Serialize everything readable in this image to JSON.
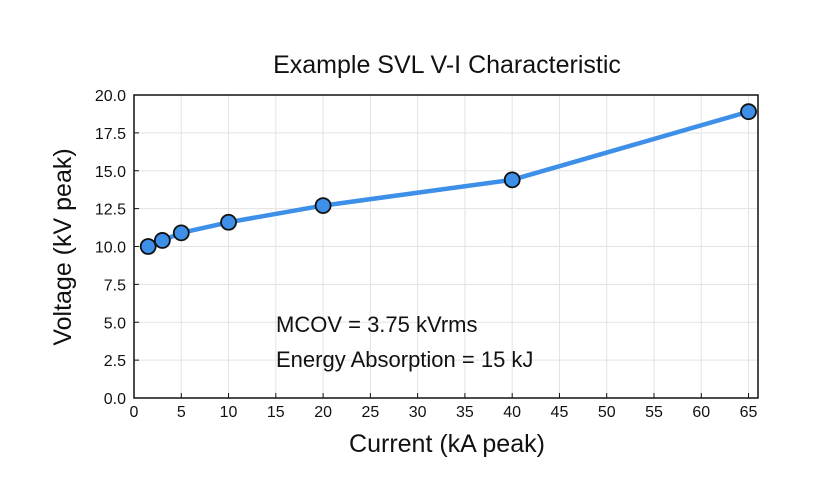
{
  "chart_data": {
    "type": "line",
    "title": "Example SVL V-I Characteristic",
    "xlabel": "Current (kA peak)",
    "ylabel": "Voltage (kV peak)",
    "xlim": [
      0,
      66
    ],
    "ylim": [
      0,
      20
    ],
    "xticks": [
      0,
      5,
      10,
      15,
      20,
      25,
      30,
      35,
      40,
      45,
      50,
      55,
      60,
      65
    ],
    "yticks": [
      0.0,
      2.5,
      5.0,
      7.5,
      10.0,
      12.5,
      15.0,
      17.5,
      20.0
    ],
    "grid": true,
    "series": [
      {
        "x": [
          1.5,
          3,
          5,
          10,
          20,
          40,
          65
        ],
        "y": [
          10.0,
          10.4,
          10.9,
          11.6,
          12.7,
          14.4,
          18.9
        ],
        "color": "#3d8fe8",
        "marker": "circle"
      }
    ],
    "annotations": [
      "MCOV = 3.75 kVrms",
      "Energy Absorption = 15 kJ"
    ]
  }
}
